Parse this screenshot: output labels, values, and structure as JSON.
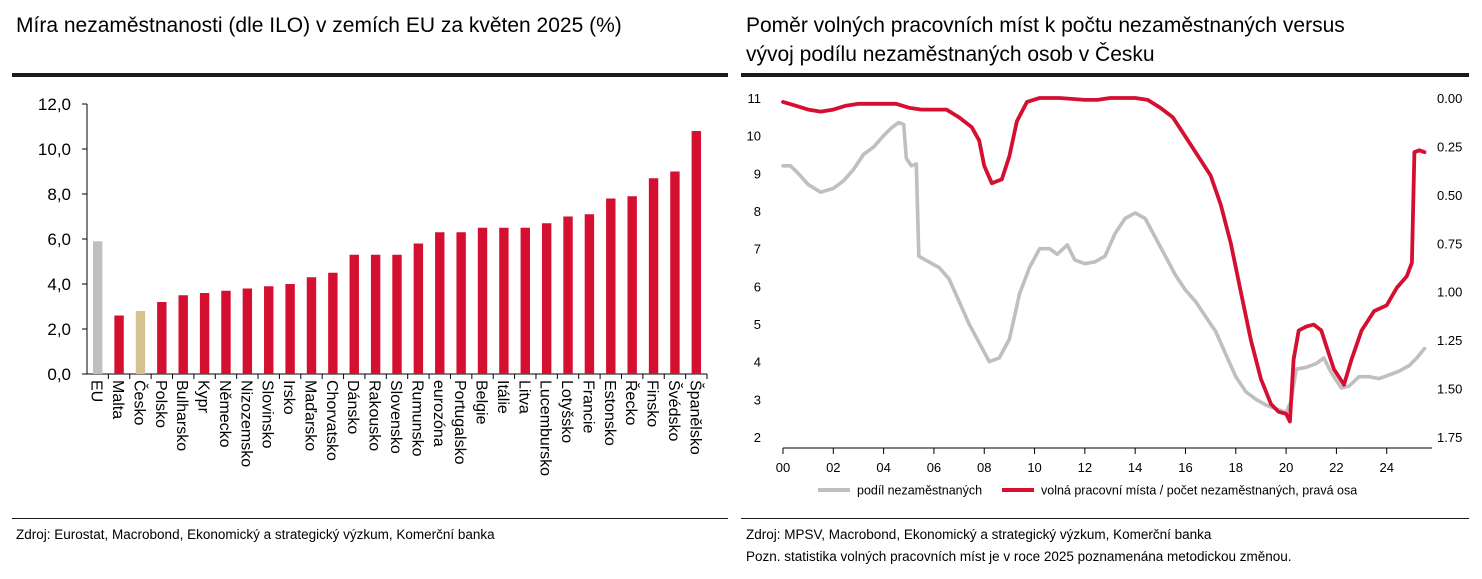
{
  "left": {
    "title": "Míra  nezaměstnanosti (dle ILO) v zemích EU za květen 2025 (%)",
    "source": "Zdroj: Eurostat, Macrobond, Ekonomický a strategický výzkum, Komerční banka"
  },
  "right": {
    "title_line1": "Poměr volných pracovních míst k počtu nezaměstnaných versus",
    "title_line2": "vývoj podílu nezaměstnaných osob v Česku",
    "source": "Zdroj: MPSV, Macrobond, Ekonomický a strategický výzkum, Komerční banka",
    "note": "Pozn. statistika volných pracovních míst je v roce 2025 poznamenána metodickou změnou."
  },
  "colors": {
    "red": "#d50f2f",
    "gray": "#bfbfbf",
    "tan": "#d6c28f",
    "axis": "#000000"
  },
  "chart_data": [
    {
      "type": "bar",
      "categories": [
        "EU",
        "Malta",
        "Česko",
        "Polsko",
        "Bulharsko",
        "Kypr",
        "Německo",
        "Nizozemsko",
        "Slovinsko",
        "Irsko",
        "Maďarsko",
        "Chorvatsko",
        "Dánsko",
        "Rakousko",
        "Slovensko",
        "Rumunsko",
        "eurozóna",
        "Portugalsko",
        "Belgie",
        "Itálie",
        "Litva",
        "Lucembursko",
        "Lotyšsko",
        "Francie",
        "Estonsko",
        "Řecko",
        "Finsko",
        "Švédsko",
        "Španělsko"
      ],
      "values": [
        5.9,
        2.6,
        2.8,
        3.2,
        3.5,
        3.6,
        3.7,
        3.8,
        3.9,
        4.0,
        4.3,
        4.5,
        5.3,
        5.3,
        5.3,
        5.8,
        6.3,
        6.3,
        6.5,
        6.5,
        6.5,
        6.7,
        7.0,
        7.1,
        7.8,
        7.9,
        8.7,
        9.0,
        10.8
      ],
      "bar_colors": [
        "gray",
        "red",
        "tan",
        "red",
        "red",
        "red",
        "red",
        "red",
        "red",
        "red",
        "red",
        "red",
        "red",
        "red",
        "red",
        "red",
        "red",
        "red",
        "red",
        "red",
        "red",
        "red",
        "red",
        "red",
        "red",
        "red",
        "red",
        "red",
        "red"
      ],
      "ylim": [
        0,
        12
      ],
      "yticks": [
        "0,0",
        "2,0",
        "4,0",
        "6,0",
        "8,0",
        "10,0",
        "12,0"
      ],
      "grid": false
    },
    {
      "type": "line",
      "xlim": [
        2000,
        2025.8
      ],
      "xticks": [
        "00",
        "02",
        "04",
        "06",
        "08",
        "10",
        "12",
        "14",
        "16",
        "18",
        "20",
        "22",
        "24"
      ],
      "left_axis": {
        "ylim": [
          2,
          11
        ],
        "ticks": [
          "2",
          "3",
          "4",
          "5",
          "6",
          "7",
          "8",
          "9",
          "10",
          "11"
        ]
      },
      "right_axis": {
        "ylim": [
          0.0,
          1.75
        ],
        "reversed": true,
        "ticks": [
          "0.00",
          "0.25",
          "0.50",
          "0.75",
          "1.00",
          "1.25",
          "1.50",
          "1.75"
        ]
      },
      "series": [
        {
          "name": "podíl nezaměstnaných",
          "color": "gray",
          "axis": "left",
          "points": [
            [
              2000,
              9.2
            ],
            [
              2000.3,
              9.2
            ],
            [
              2000.6,
              9.0
            ],
            [
              2001,
              8.7
            ],
            [
              2001.5,
              8.5
            ],
            [
              2002,
              8.6
            ],
            [
              2002.4,
              8.8
            ],
            [
              2002.8,
              9.1
            ],
            [
              2003.2,
              9.5
            ],
            [
              2003.6,
              9.7
            ],
            [
              2004,
              10.0
            ],
            [
              2004.3,
              10.2
            ],
            [
              2004.6,
              10.35
            ],
            [
              2004.8,
              10.3
            ],
            [
              2004.9,
              9.4
            ],
            [
              2005.1,
              9.2
            ],
            [
              2005.3,
              9.25
            ],
            [
              2005.4,
              6.8
            ],
            [
              2005.8,
              6.65
            ],
            [
              2006.2,
              6.5
            ],
            [
              2006.6,
              6.2
            ],
            [
              2007,
              5.6
            ],
            [
              2007.4,
              5.0
            ],
            [
              2007.8,
              4.5
            ],
            [
              2008.2,
              4.0
            ],
            [
              2008.6,
              4.1
            ],
            [
              2009,
              4.6
            ],
            [
              2009.4,
              5.8
            ],
            [
              2009.8,
              6.5
            ],
            [
              2010.2,
              7.0
            ],
            [
              2010.6,
              7.0
            ],
            [
              2010.9,
              6.85
            ],
            [
              2011.3,
              7.1
            ],
            [
              2011.6,
              6.7
            ],
            [
              2012,
              6.6
            ],
            [
              2012.4,
              6.65
            ],
            [
              2012.8,
              6.8
            ],
            [
              2013.2,
              7.4
            ],
            [
              2013.6,
              7.8
            ],
            [
              2014,
              7.95
            ],
            [
              2014.4,
              7.8
            ],
            [
              2014.8,
              7.3
            ],
            [
              2015.2,
              6.8
            ],
            [
              2015.6,
              6.3
            ],
            [
              2016,
              5.9
            ],
            [
              2016.4,
              5.6
            ],
            [
              2016.8,
              5.2
            ],
            [
              2017.2,
              4.8
            ],
            [
              2017.6,
              4.2
            ],
            [
              2018,
              3.6
            ],
            [
              2018.4,
              3.2
            ],
            [
              2018.8,
              3.0
            ],
            [
              2019.2,
              2.85
            ],
            [
              2019.6,
              2.75
            ],
            [
              2020,
              2.65
            ],
            [
              2020.2,
              2.95
            ],
            [
              2020.4,
              3.8
            ],
            [
              2020.8,
              3.85
            ],
            [
              2021.2,
              3.95
            ],
            [
              2021.5,
              4.1
            ],
            [
              2021.8,
              3.7
            ],
            [
              2022.2,
              3.3
            ],
            [
              2022.5,
              3.35
            ],
            [
              2022.9,
              3.6
            ],
            [
              2023.3,
              3.6
            ],
            [
              2023.7,
              3.55
            ],
            [
              2024.1,
              3.65
            ],
            [
              2024.5,
              3.75
            ],
            [
              2024.9,
              3.9
            ],
            [
              2025.2,
              4.1
            ],
            [
              2025.5,
              4.35
            ]
          ]
        },
        {
          "name": "volná pracovní místa / počet nezaměstnaných, pravá osa",
          "color": "red",
          "axis": "right",
          "points": [
            [
              2000,
              0.02
            ],
            [
              2000.5,
              0.04
            ],
            [
              2001,
              0.06
            ],
            [
              2001.5,
              0.07
            ],
            [
              2002,
              0.06
            ],
            [
              2002.5,
              0.04
            ],
            [
              2003,
              0.03
            ],
            [
              2003.5,
              0.03
            ],
            [
              2004,
              0.03
            ],
            [
              2004.5,
              0.03
            ],
            [
              2005,
              0.05
            ],
            [
              2005.5,
              0.06
            ],
            [
              2006,
              0.06
            ],
            [
              2006.5,
              0.06
            ],
            [
              2007,
              0.1
            ],
            [
              2007.5,
              0.15
            ],
            [
              2007.8,
              0.22
            ],
            [
              2008,
              0.35
            ],
            [
              2008.3,
              0.44
            ],
            [
              2008.7,
              0.42
            ],
            [
              2009,
              0.3
            ],
            [
              2009.3,
              0.12
            ],
            [
              2009.7,
              0.02
            ],
            [
              2010.2,
              0.0
            ],
            [
              2011,
              0.0
            ],
            [
              2012,
              0.01
            ],
            [
              2012.5,
              0.01
            ],
            [
              2013,
              0.0
            ],
            [
              2013.5,
              0.0
            ],
            [
              2014,
              0.0
            ],
            [
              2014.5,
              0.01
            ],
            [
              2015,
              0.05
            ],
            [
              2015.5,
              0.1
            ],
            [
              2016,
              0.2
            ],
            [
              2016.5,
              0.3
            ],
            [
              2017,
              0.4
            ],
            [
              2017.4,
              0.55
            ],
            [
              2017.8,
              0.75
            ],
            [
              2018.2,
              1.0
            ],
            [
              2018.6,
              1.25
            ],
            [
              2019,
              1.45
            ],
            [
              2019.4,
              1.58
            ],
            [
              2019.7,
              1.62
            ],
            [
              2020,
              1.63
            ],
            [
              2020.15,
              1.67
            ],
            [
              2020.3,
              1.35
            ],
            [
              2020.5,
              1.2
            ],
            [
              2020.8,
              1.18
            ],
            [
              2021.1,
              1.17
            ],
            [
              2021.4,
              1.2
            ],
            [
              2021.6,
              1.28
            ],
            [
              2021.9,
              1.4
            ],
            [
              2022.3,
              1.48
            ],
            [
              2022.6,
              1.35
            ],
            [
              2023,
              1.2
            ],
            [
              2023.5,
              1.1
            ],
            [
              2024,
              1.07
            ],
            [
              2024.4,
              0.98
            ],
            [
              2024.8,
              0.92
            ],
            [
              2025,
              0.85
            ],
            [
              2025.1,
              0.28
            ],
            [
              2025.3,
              0.27
            ],
            [
              2025.5,
              0.28
            ]
          ]
        }
      ]
    }
  ]
}
